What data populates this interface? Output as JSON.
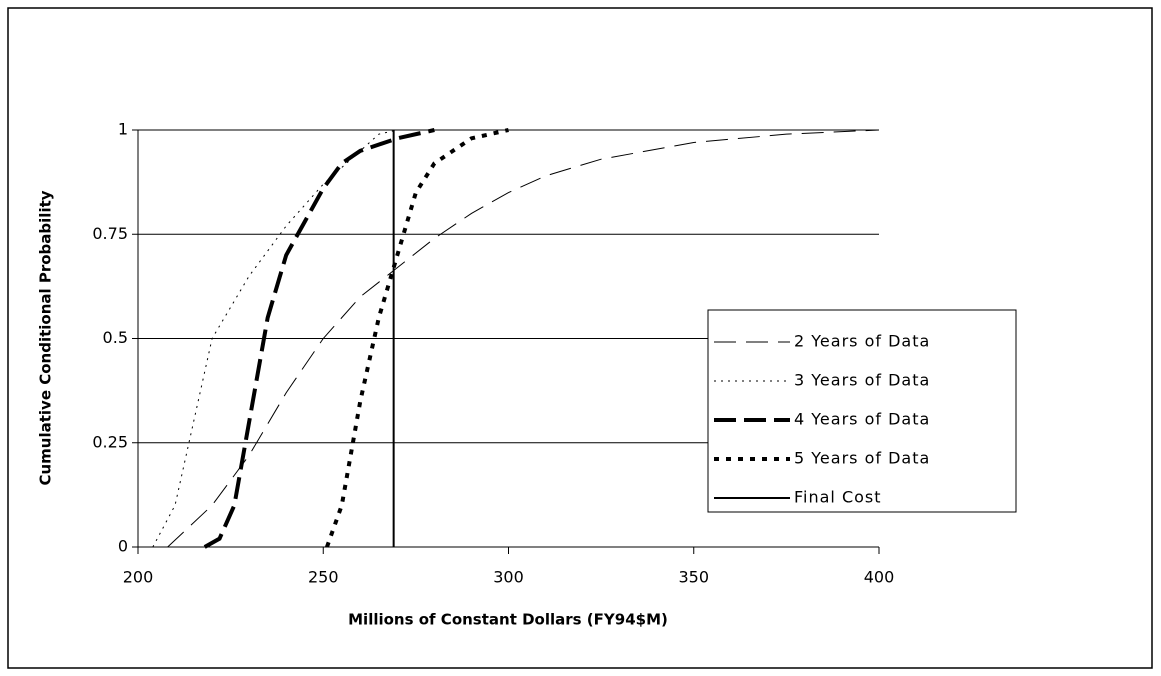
{
  "chart_data": {
    "type": "line",
    "xlabel": "Millions of Constant Dollars (FY94$M)",
    "ylabel": "Cumulative Conditional Probability",
    "xlim": [
      200,
      400
    ],
    "xticks": [
      200,
      250,
      300,
      350,
      400
    ],
    "ylim": [
      0,
      1
    ],
    "yticks": [
      0,
      0.25,
      0.5,
      0.75,
      1
    ],
    "grid": true,
    "legend": "right",
    "series": [
      {
        "name": "2 Years of Data",
        "color": "#000000",
        "dash": "22 10",
        "width": 1,
        "x": [
          208,
          220,
          230,
          240,
          250,
          260,
          270,
          280,
          290,
          300,
          310,
          325,
          350,
          375,
          400
        ],
        "values": [
          0,
          0.1,
          0.22,
          0.37,
          0.5,
          0.6,
          0.67,
          0.74,
          0.8,
          0.85,
          0.89,
          0.93,
          0.97,
          0.99,
          1
        ]
      },
      {
        "name": "3 Years of Data",
        "color": "#000000",
        "dash": "2 5",
        "width": 1,
        "x": [
          204,
          210,
          215,
          220,
          230,
          240,
          250,
          260,
          265,
          270
        ],
        "values": [
          0,
          0.1,
          0.3,
          0.5,
          0.65,
          0.77,
          0.87,
          0.95,
          0.99,
          1
        ]
      },
      {
        "name": "4 Years of Data",
        "color": "#000000",
        "dash": "22 8",
        "width": 4,
        "x": [
          218,
          222,
          226,
          230,
          235,
          240,
          245,
          250,
          255,
          260,
          270,
          280
        ],
        "values": [
          0,
          0.02,
          0.1,
          0.3,
          0.55,
          0.7,
          0.78,
          0.86,
          0.92,
          0.95,
          0.98,
          1
        ]
      },
      {
        "name": "5 Years of Data",
        "color": "#000000",
        "dash": "5 7",
        "width": 4,
        "x": [
          251,
          255,
          260,
          265,
          270,
          275,
          280,
          290,
          300
        ],
        "values": [
          0,
          0.1,
          0.35,
          0.55,
          0.7,
          0.85,
          0.92,
          0.98,
          1
        ]
      },
      {
        "name": "Final Cost",
        "color": "#000000",
        "dash": "none",
        "width": 2,
        "x": [
          269,
          269
        ],
        "values": [
          0,
          1
        ]
      }
    ]
  }
}
